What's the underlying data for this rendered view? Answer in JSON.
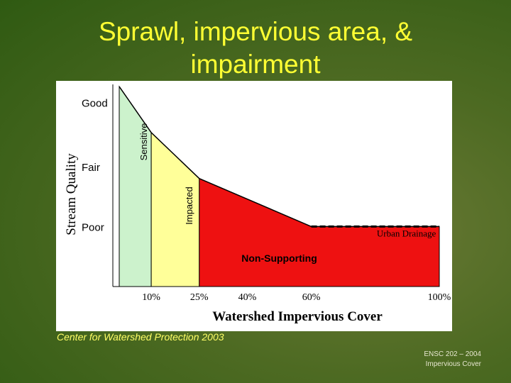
{
  "slide": {
    "title_line1": "Sprawl, impervious area, &",
    "title_line2": "impairment",
    "source": "Center for Watershed Protection 2003",
    "footer_line1": "ENSC 202 – 2004",
    "footer_line2": "Impervious Cover"
  },
  "chart_data": {
    "type": "area",
    "xlabel": "Watershed Impervious Cover",
    "ylabel": "Stream Quality",
    "xlim": [
      0,
      100
    ],
    "x_ticks": [
      {
        "x": 10,
        "label": "10%"
      },
      {
        "x": 25,
        "label": "25%"
      },
      {
        "x": 40,
        "label": "40%"
      },
      {
        "x": 60,
        "label": "60%"
      },
      {
        "x": 100,
        "label": "100%"
      }
    ],
    "y_levels": [
      {
        "label": "Good",
        "y": 0.92
      },
      {
        "label": "Fair",
        "y": 0.6
      },
      {
        "label": "Poor",
        "y": 0.3
      }
    ],
    "curve": [
      {
        "x": 0,
        "y": 1.0
      },
      {
        "x": 10,
        "y": 0.77
      },
      {
        "x": 25,
        "y": 0.54
      },
      {
        "x": 60,
        "y": 0.3
      },
      {
        "x": 100,
        "y": 0.3
      }
    ],
    "zones": [
      {
        "label": "Sensitive",
        "x_start": 0,
        "x_end": 10,
        "color": "#ccf2cc"
      },
      {
        "label": "Impacted",
        "x_start": 10,
        "x_end": 25,
        "color": "#ffff99"
      },
      {
        "label": "Non-Supporting",
        "x_start": 25,
        "x_end": 100,
        "color": "#ee1111"
      }
    ],
    "annotations": [
      {
        "label": "Urban Drainage"
      }
    ]
  }
}
